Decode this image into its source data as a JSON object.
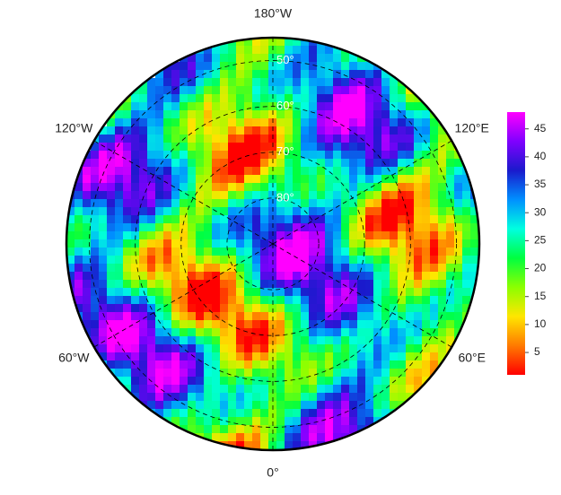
{
  "map": {
    "type": "polar-stereographic",
    "lat_min": 45,
    "longitude_labels": [
      {
        "value": -180,
        "label": "180°W"
      },
      {
        "value": -120,
        "label": "120°W"
      },
      {
        "value": -60,
        "label": "60°W"
      },
      {
        "value": 0,
        "label": "0°"
      },
      {
        "value": 60,
        "label": "60°E"
      },
      {
        "value": 120,
        "label": "120°E"
      }
    ],
    "latitude_circles": [
      {
        "value": 50,
        "label": "50°"
      },
      {
        "value": 60,
        "label": "60°"
      },
      {
        "value": 70,
        "label": "70°"
      },
      {
        "value": 80,
        "label": "80°"
      }
    ],
    "colorbar": {
      "lim": [
        1,
        48
      ],
      "ticks": [
        5,
        10,
        15,
        20,
        25,
        30,
        35,
        40,
        45
      ],
      "colors": [
        "#ff0000",
        "#ff7a00",
        "#ffe600",
        "#8cff00",
        "#00ff40",
        "#00ffe0",
        "#0090ff",
        "#1a1acc",
        "#8000ff",
        "#ff00ff"
      ]
    }
  }
}
